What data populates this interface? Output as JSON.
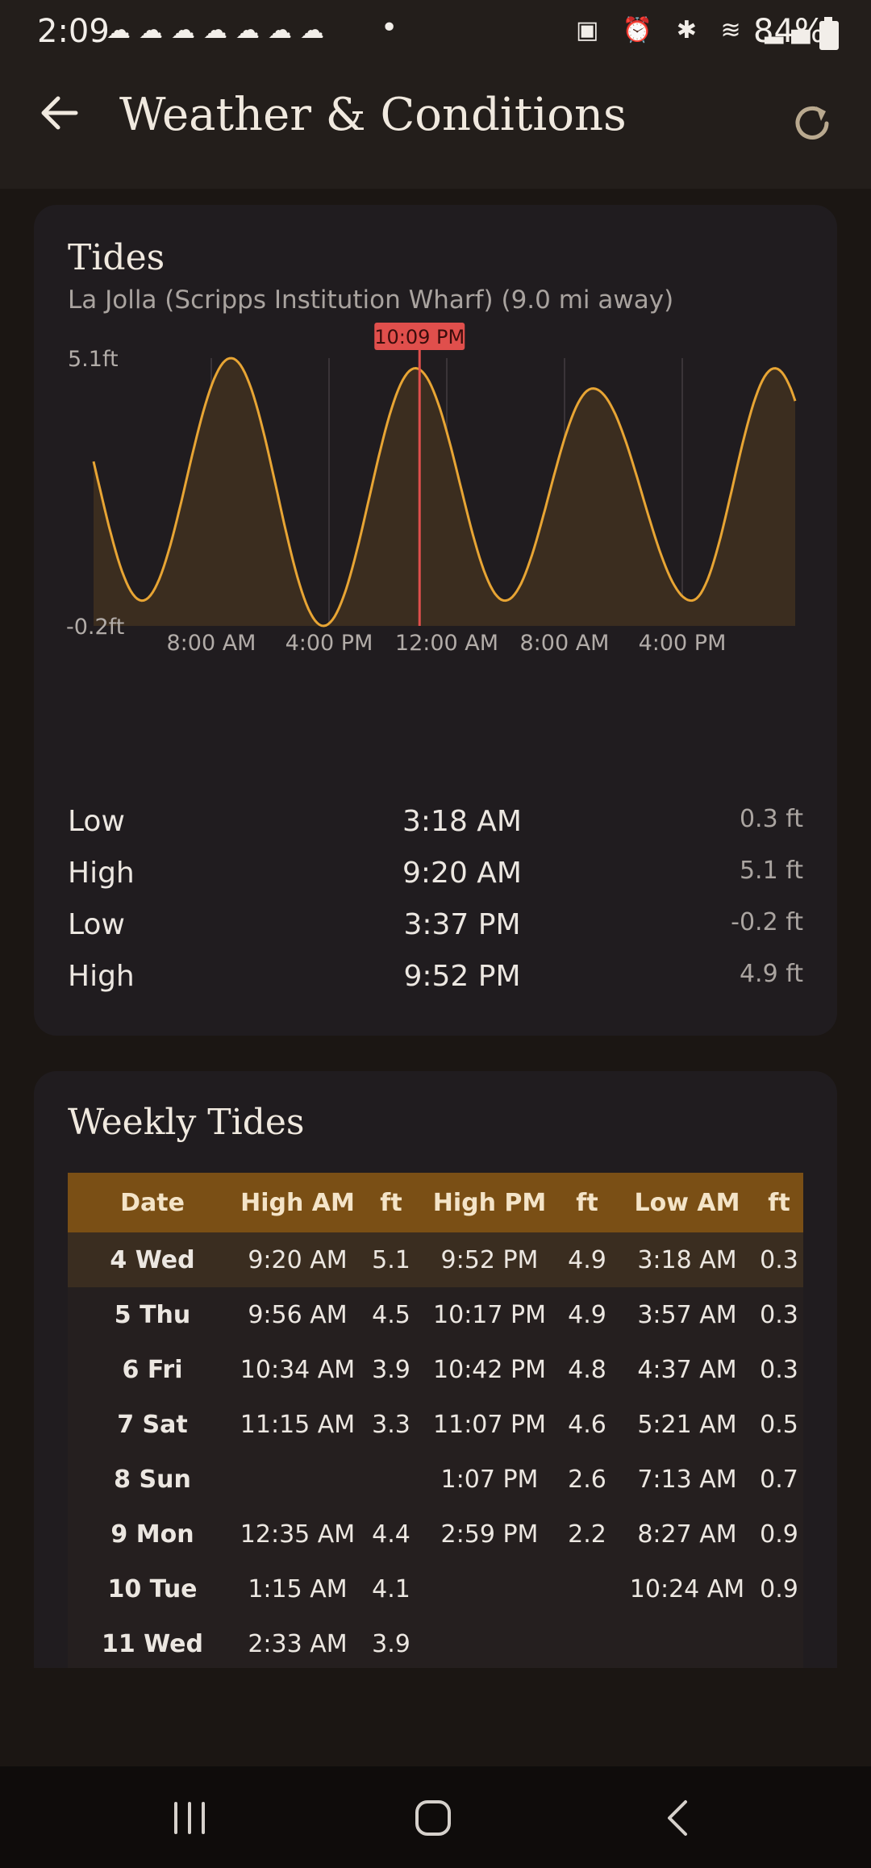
{
  "status_bar": {
    "time": "2:09",
    "notification_icons": "☁☁☁☁☁☁☁",
    "dot": "•",
    "system_icons": "▣ ⏰ ✱ ≋ ▂▄",
    "battery": "84%"
  },
  "app_bar": {
    "title": "Weather & Conditions"
  },
  "tides": {
    "title": "Tides",
    "location": "La Jolla (Scripps Institution Wharf) (9.0 mi away)",
    "chart_data": {
      "type": "area",
      "y_max_label": "5.1ft",
      "y_min_label": "-0.2ft",
      "ylim": [
        -0.2,
        5.1
      ],
      "x_tick_labels": [
        "8:00 AM",
        "4:00 PM",
        "12:00 AM",
        "8:00 AM",
        "4:00 PM"
      ],
      "now_label": "10:09 PM",
      "now_time": "10:09 PM",
      "extremes": [
        {
          "time": "3:18 AM",
          "height": 0.3
        },
        {
          "time": "9:20 AM",
          "height": 5.1
        },
        {
          "time": "3:37 PM",
          "height": -0.2
        },
        {
          "time": "9:52 PM",
          "height": 4.9
        },
        {
          "time": "3:57 AM",
          "height": 0.3
        },
        {
          "time": "9:56 AM",
          "height": 4.5
        },
        {
          "time": "4:37 PM",
          "height": 0.3
        },
        {
          "time": "10:17 PM",
          "height": 4.9
        }
      ],
      "grid": true,
      "line_color": "#e8a534",
      "fill_color": "#3b2d1f",
      "now_line_color": "#e04f4c"
    },
    "events": [
      {
        "type": "Low",
        "time": "3:18 AM",
        "height": "0.3 ft"
      },
      {
        "type": "High",
        "time": "9:20 AM",
        "height": "5.1 ft"
      },
      {
        "type": "Low",
        "time": "3:37 PM",
        "height": "-0.2 ft"
      },
      {
        "type": "High",
        "time": "9:52 PM",
        "height": "4.9 ft"
      }
    ]
  },
  "weekly": {
    "title": "Weekly Tides",
    "headers": [
      "Date",
      "High AM",
      "ft",
      "High PM",
      "ft",
      "Low AM",
      "ft"
    ],
    "rows": [
      [
        "4 Wed",
        "9:20 AM",
        "5.1",
        "9:52 PM",
        "4.9",
        "3:18 AM",
        "0.3"
      ],
      [
        "5 Thu",
        "9:56 AM",
        "4.5",
        "10:17 PM",
        "4.9",
        "3:57 AM",
        "0.3"
      ],
      [
        "6 Fri",
        "10:34 AM",
        "3.9",
        "10:42 PM",
        "4.8",
        "4:37 AM",
        "0.3"
      ],
      [
        "7 Sat",
        "11:15 AM",
        "3.3",
        "11:07 PM",
        "4.6",
        "5:21 AM",
        "0.5"
      ],
      [
        "8 Sun",
        "",
        "",
        "1:07 PM",
        "2.6",
        "7:13 AM",
        "0.7"
      ],
      [
        "9 Mon",
        "12:35 AM",
        "4.4",
        "2:59 PM",
        "2.2",
        "8:27 AM",
        "0.9"
      ],
      [
        "10 Tue",
        "1:15 AM",
        "4.1",
        "",
        "",
        "10:24 AM",
        "0.9"
      ],
      [
        "11 Wed",
        "2:33 AM",
        "3.9",
        "",
        "",
        "",
        ""
      ]
    ]
  }
}
